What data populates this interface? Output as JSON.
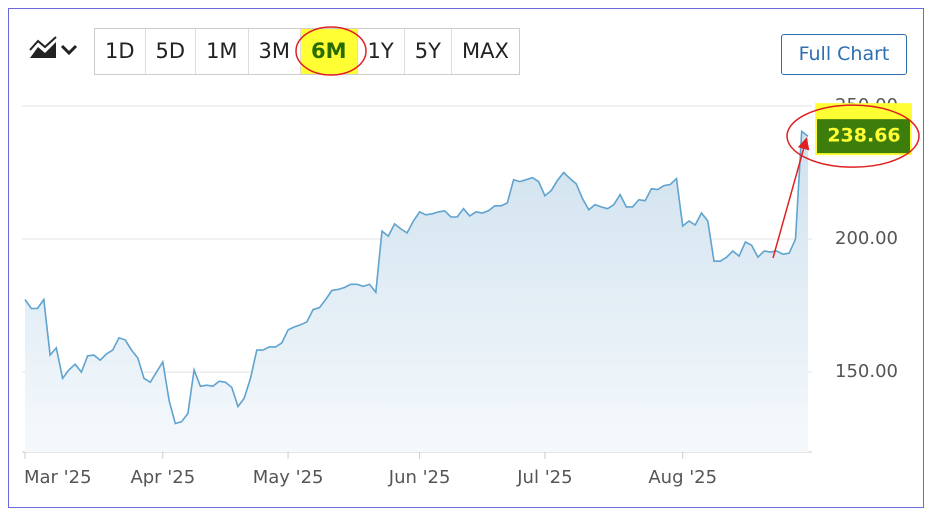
{
  "toolbar": {
    "ranges": [
      "1D",
      "5D",
      "1M",
      "3M",
      "6M",
      "1Y",
      "5Y",
      "MAX"
    ],
    "full_chart_button": "Full Chart"
  },
  "chart_data": {
    "type": "area",
    "color": "#5fa3cf",
    "categories": [
      "Mar '25",
      null,
      null,
      null,
      null,
      null,
      null,
      null,
      null,
      null,
      null,
      null,
      null,
      null,
      null,
      null,
      null,
      null,
      null,
      null,
      null,
      null,
      "Apr '25",
      null,
      null,
      null,
      null,
      null,
      null,
      null,
      null,
      null,
      null,
      null,
      null,
      null,
      null,
      null,
      null,
      null,
      null,
      null,
      "May '25",
      null,
      null,
      null,
      null,
      null,
      null,
      null,
      null,
      null,
      null,
      null,
      null,
      null,
      null,
      null,
      null,
      null,
      null,
      null,
      null,
      "Jun '25",
      null,
      null,
      null,
      null,
      null,
      null,
      null,
      null,
      null,
      null,
      null,
      null,
      null,
      null,
      null,
      null,
      null,
      null,
      null,
      "Jul '25",
      null,
      null,
      null,
      null,
      null,
      null,
      null,
      null,
      null,
      null,
      null,
      null,
      null,
      null,
      null,
      null,
      null,
      null,
      null,
      null,
      null,
      "Aug '25",
      null,
      null,
      null,
      null,
      null,
      null,
      null,
      null,
      null,
      null,
      null,
      null,
      null,
      null,
      null,
      null,
      null,
      null,
      null,
      null
    ],
    "values": [
      177.3,
      173.9,
      173.9,
      177.3,
      156.4,
      159.1,
      147.7,
      150.8,
      153.0,
      150.0,
      156.1,
      156.4,
      154.5,
      156.8,
      158.3,
      162.9,
      162.1,
      158.3,
      155.3,
      147.7,
      146.2,
      150.0,
      153.8,
      139.4,
      130.7,
      131.4,
      134.5,
      150.8,
      144.7,
      145.1,
      144.7,
      146.6,
      146.2,
      144.3,
      137.1,
      140.2,
      147.7,
      158.3,
      158.3,
      159.5,
      159.5,
      161.0,
      165.9,
      167.0,
      167.8,
      168.9,
      173.5,
      174.2,
      177.3,
      180.7,
      181.1,
      181.8,
      183.0,
      183.0,
      182.2,
      183.0,
      180.0,
      203.0,
      201.1,
      205.7,
      203.8,
      202.3,
      206.8,
      210.2,
      209.1,
      209.5,
      210.2,
      210.6,
      208.3,
      208.3,
      211.4,
      208.7,
      210.2,
      209.8,
      210.6,
      212.5,
      212.5,
      213.6,
      222.3,
      221.6,
      222.3,
      223.1,
      221.6,
      216.3,
      218.2,
      222.0,
      225.0,
      222.7,
      220.8,
      215.2,
      211.0,
      212.9,
      212.1,
      211.4,
      212.9,
      216.7,
      212.1,
      212.1,
      214.8,
      214.4,
      218.9,
      218.6,
      220.1,
      220.5,
      222.7,
      204.9,
      206.8,
      205.3,
      209.8,
      206.8,
      191.7,
      191.7,
      193.2,
      195.5,
      193.6,
      198.9,
      197.7,
      193.2,
      195.5,
      195.1,
      195.5,
      194.3,
      194.7,
      200.0,
      240.5,
      238.66
    ],
    "last_price": 238.66,
    "ylim": [
      120,
      256
    ],
    "yticks": [
      {
        "value": 150,
        "label": "150.00"
      },
      {
        "value": 200,
        "label": "200.00"
      },
      {
        "value": 250,
        "label": "250.00"
      }
    ],
    "grid": true
  }
}
